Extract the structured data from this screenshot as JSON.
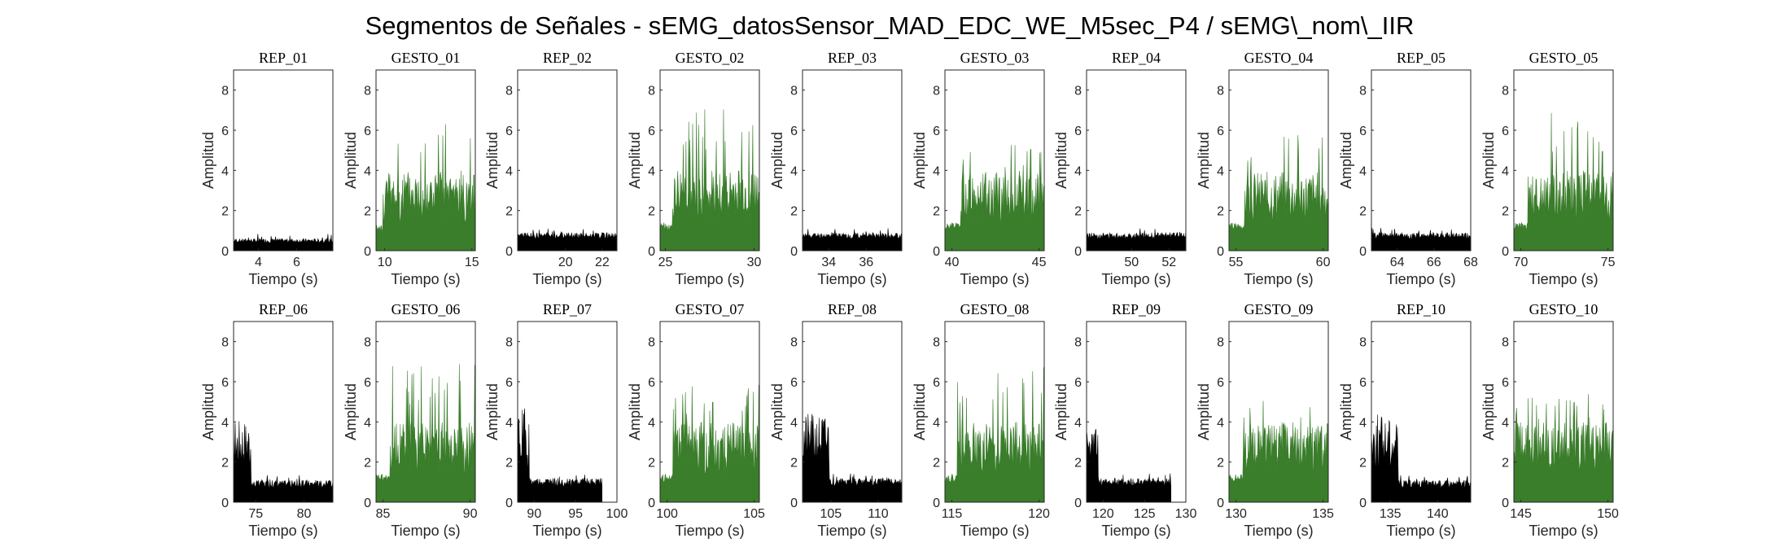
{
  "figure": {
    "title": "Segmentos de Señales - sEMG_datosSensor_MAD_EDC_WE_M5sec_P4 / sEMG\\_nom\\_IIR"
  },
  "colors": {
    "rep": "#000000",
    "gesto": "#3a7d2b"
  },
  "chart_data": [
    {
      "type": "area",
      "title": "REP_01",
      "xlabel": "Tiempo (s)",
      "ylabel": "Amplitud",
      "kind": "rep",
      "xlim": [
        2.7,
        7.9
      ],
      "ylim": [
        0,
        9
      ],
      "xticks": [
        4,
        6
      ],
      "yticks": [
        0,
        2,
        4,
        6,
        8
      ],
      "t0": 2.7,
      "t1": 7.9,
      "active_start": null,
      "active_end": null,
      "peak": 0.9,
      "base": 0.6
    },
    {
      "type": "area",
      "title": "GESTO_01",
      "xlabel": "Tiempo (s)",
      "ylabel": "Amplitud",
      "kind": "gesto",
      "xlim": [
        9.5,
        15.2
      ],
      "ylim": [
        0,
        9
      ],
      "xticks": [
        10,
        15
      ],
      "yticks": [
        0,
        2,
        4,
        6,
        8
      ],
      "t0": 9.5,
      "t1": 15.2,
      "active_start": 9.9,
      "active_end": 15.2,
      "peak": 6.4,
      "base": 0.9
    },
    {
      "type": "area",
      "title": "REP_02",
      "xlabel": "Tiempo (s)",
      "ylabel": "Amplitud",
      "kind": "rep",
      "xlim": [
        17.4,
        22.8
      ],
      "ylim": [
        0,
        9
      ],
      "xticks": [
        20,
        22
      ],
      "yticks": [
        0,
        2,
        4,
        6,
        8
      ],
      "t0": 17.4,
      "t1": 22.8,
      "active_start": null,
      "active_end": null,
      "peak": 1.1,
      "base": 0.9
    },
    {
      "type": "area",
      "title": "GESTO_02",
      "xlabel": "Tiempo (s)",
      "ylabel": "Amplitud",
      "kind": "gesto",
      "xlim": [
        24.7,
        30.3
      ],
      "ylim": [
        0,
        9
      ],
      "xticks": [
        25,
        30
      ],
      "yticks": [
        0,
        2,
        4,
        6,
        8
      ],
      "t0": 24.7,
      "t1": 30.3,
      "active_start": 25.4,
      "active_end": 30.3,
      "peak": 7.1,
      "base": 1.0
    },
    {
      "type": "area",
      "title": "REP_03",
      "xlabel": "Tiempo (s)",
      "ylabel": "Amplitud",
      "kind": "rep",
      "xlim": [
        32.6,
        37.9
      ],
      "ylim": [
        0,
        9
      ],
      "xticks": [
        34,
        36
      ],
      "yticks": [
        0,
        2,
        4,
        6,
        8
      ],
      "t0": 32.6,
      "t1": 37.9,
      "active_start": null,
      "active_end": null,
      "peak": 1.2,
      "base": 0.9
    },
    {
      "type": "area",
      "title": "GESTO_03",
      "xlabel": "Tiempo (s)",
      "ylabel": "Amplitud",
      "kind": "gesto",
      "xlim": [
        39.6,
        45.3
      ],
      "ylim": [
        0,
        9
      ],
      "xticks": [
        40,
        45
      ],
      "yticks": [
        0,
        2,
        4,
        6,
        8
      ],
      "t0": 39.6,
      "t1": 45.3,
      "active_start": 40.5,
      "active_end": 45.3,
      "peak": 5.3,
      "base": 1.0
    },
    {
      "type": "area",
      "title": "REP_04",
      "xlabel": "Tiempo (s)",
      "ylabel": "Amplitud",
      "kind": "rep",
      "xlim": [
        47.6,
        52.9
      ],
      "ylim": [
        0,
        9
      ],
      "xticks": [
        50,
        52
      ],
      "yticks": [
        0,
        2,
        4,
        6,
        8
      ],
      "t0": 47.6,
      "t1": 52.9,
      "active_start": null,
      "active_end": null,
      "peak": 1.2,
      "base": 0.9
    },
    {
      "type": "area",
      "title": "GESTO_04",
      "xlabel": "Tiempo (s)",
      "ylabel": "Amplitud",
      "kind": "gesto",
      "xlim": [
        54.6,
        60.3
      ],
      "ylim": [
        0,
        9
      ],
      "xticks": [
        55,
        60
      ],
      "yticks": [
        0,
        2,
        4,
        6,
        8
      ],
      "t0": 54.6,
      "t1": 60.3,
      "active_start": 55.5,
      "active_end": 60.3,
      "peak": 6.1,
      "base": 1.0
    },
    {
      "type": "area",
      "title": "REP_05",
      "xlabel": "Tiempo (s)",
      "ylabel": "Amplitud",
      "kind": "rep",
      "xlim": [
        62.6,
        68.0
      ],
      "ylim": [
        0,
        9
      ],
      "xticks": [
        64,
        66,
        68
      ],
      "yticks": [
        0,
        2,
        4,
        6,
        8
      ],
      "t0": 62.6,
      "t1": 68.0,
      "active_start": null,
      "active_end": null,
      "peak": 1.2,
      "base": 0.9
    },
    {
      "type": "area",
      "title": "GESTO_05",
      "xlabel": "Tiempo (s)",
      "ylabel": "Amplitud",
      "kind": "gesto",
      "xlim": [
        69.6,
        75.3
      ],
      "ylim": [
        0,
        9
      ],
      "xticks": [
        70,
        75
      ],
      "yticks": [
        0,
        2,
        4,
        6,
        8
      ],
      "t0": 69.6,
      "t1": 75.3,
      "active_start": 70.4,
      "active_end": 75.3,
      "peak": 7.0,
      "base": 1.0
    },
    {
      "type": "area",
      "title": "REP_06",
      "xlabel": "Tiempo (s)",
      "ylabel": "Amplitud",
      "kind": "rep",
      "xlim": [
        72.7,
        83.0
      ],
      "ylim": [
        0,
        9
      ],
      "xticks": [
        75,
        80
      ],
      "yticks": [
        0,
        2,
        4,
        6,
        8
      ],
      "t0": 72.7,
      "t1": 83.0,
      "active_start": 72.7,
      "active_end": 74.5,
      "peak": 4.2,
      "base": 1.1
    },
    {
      "type": "area",
      "title": "GESTO_06",
      "xlabel": "Tiempo (s)",
      "ylabel": "Amplitud",
      "kind": "gesto",
      "xlim": [
        84.6,
        90.3
      ],
      "ylim": [
        0,
        9
      ],
      "xticks": [
        85,
        90
      ],
      "yticks": [
        0,
        2,
        4,
        6,
        8
      ],
      "t0": 84.6,
      "t1": 90.3,
      "active_start": 85.4,
      "active_end": 90.3,
      "peak": 6.9,
      "base": 1.0
    },
    {
      "type": "area",
      "title": "REP_07",
      "xlabel": "Tiempo (s)",
      "ylabel": "Amplitud",
      "kind": "rep",
      "xlim": [
        88.0,
        100.0
      ],
      "ylim": [
        0,
        9
      ],
      "xticks": [
        90,
        95,
        100
      ],
      "yticks": [
        0,
        2,
        4,
        6,
        8
      ],
      "t0": 88.0,
      "t1": 98.2,
      "active_start": 88.0,
      "active_end": 89.4,
      "peak": 4.7,
      "base": 1.2
    },
    {
      "type": "area",
      "title": "GESTO_07",
      "xlabel": "Tiempo (s)",
      "ylabel": "Amplitud",
      "kind": "gesto",
      "xlim": [
        99.6,
        105.3
      ],
      "ylim": [
        0,
        9
      ],
      "xticks": [
        100,
        105
      ],
      "yticks": [
        0,
        2,
        4,
        6,
        8
      ],
      "t0": 99.6,
      "t1": 105.3,
      "active_start": 100.3,
      "active_end": 105.3,
      "peak": 6.1,
      "base": 1.0
    },
    {
      "type": "area",
      "title": "REP_08",
      "xlabel": "Tiempo (s)",
      "ylabel": "Amplitud",
      "kind": "rep",
      "xlim": [
        102.0,
        112.5
      ],
      "ylim": [
        0,
        9
      ],
      "xticks": [
        105,
        110
      ],
      "yticks": [
        0,
        2,
        4,
        6,
        8
      ],
      "t0": 102.0,
      "t1": 112.5,
      "active_start": 102.0,
      "active_end": 104.8,
      "peak": 4.4,
      "base": 1.2
    },
    {
      "type": "area",
      "title": "GESTO_08",
      "xlabel": "Tiempo (s)",
      "ylabel": "Amplitud",
      "kind": "gesto",
      "xlim": [
        114.6,
        120.3
      ],
      "ylim": [
        0,
        9
      ],
      "xticks": [
        115,
        120
      ],
      "yticks": [
        0,
        2,
        4,
        6,
        8
      ],
      "t0": 114.6,
      "t1": 120.3,
      "active_start": 115.3,
      "active_end": 120.3,
      "peak": 6.9,
      "base": 1.0
    },
    {
      "type": "area",
      "title": "REP_09",
      "xlabel": "Tiempo (s)",
      "ylabel": "Amplitud",
      "kind": "rep",
      "xlim": [
        118.0,
        130.0
      ],
      "ylim": [
        0,
        9
      ],
      "xticks": [
        120,
        125,
        130
      ],
      "yticks": [
        0,
        2,
        4,
        6,
        8
      ],
      "t0": 118.0,
      "t1": 128.2,
      "active_start": 118.0,
      "active_end": 119.4,
      "peak": 3.7,
      "base": 1.2
    },
    {
      "type": "area",
      "title": "GESTO_09",
      "xlabel": "Tiempo (s)",
      "ylabel": "Amplitud",
      "kind": "gesto",
      "xlim": [
        129.6,
        135.3
      ],
      "ylim": [
        0,
        9
      ],
      "xticks": [
        130,
        135
      ],
      "yticks": [
        0,
        2,
        4,
        6,
        8
      ],
      "t0": 129.6,
      "t1": 135.3,
      "active_start": 130.4,
      "active_end": 135.3,
      "peak": 5.2,
      "base": 1.0
    },
    {
      "type": "area",
      "title": "REP_10",
      "xlabel": "Tiempo (s)",
      "ylabel": "Amplitud",
      "kind": "rep",
      "xlim": [
        133.0,
        143.5
      ],
      "ylim": [
        0,
        9
      ],
      "xticks": [
        135,
        140
      ],
      "yticks": [
        0,
        2,
        4,
        6,
        8
      ],
      "t0": 133.0,
      "t1": 143.5,
      "active_start": 133.0,
      "active_end": 135.8,
      "peak": 4.4,
      "base": 1.1
    },
    {
      "type": "area",
      "title": "GESTO_10",
      "xlabel": "Tiempo (s)",
      "ylabel": "Amplitud",
      "kind": "gesto",
      "xlim": [
        144.6,
        150.3
      ],
      "ylim": [
        0,
        9
      ],
      "xticks": [
        145,
        150
      ],
      "yticks": [
        0,
        2,
        4,
        6,
        8
      ],
      "t0": 144.6,
      "t1": 150.3,
      "active_start": 144.6,
      "active_end": 150.3,
      "peak": 5.4,
      "base": 1.0
    }
  ]
}
